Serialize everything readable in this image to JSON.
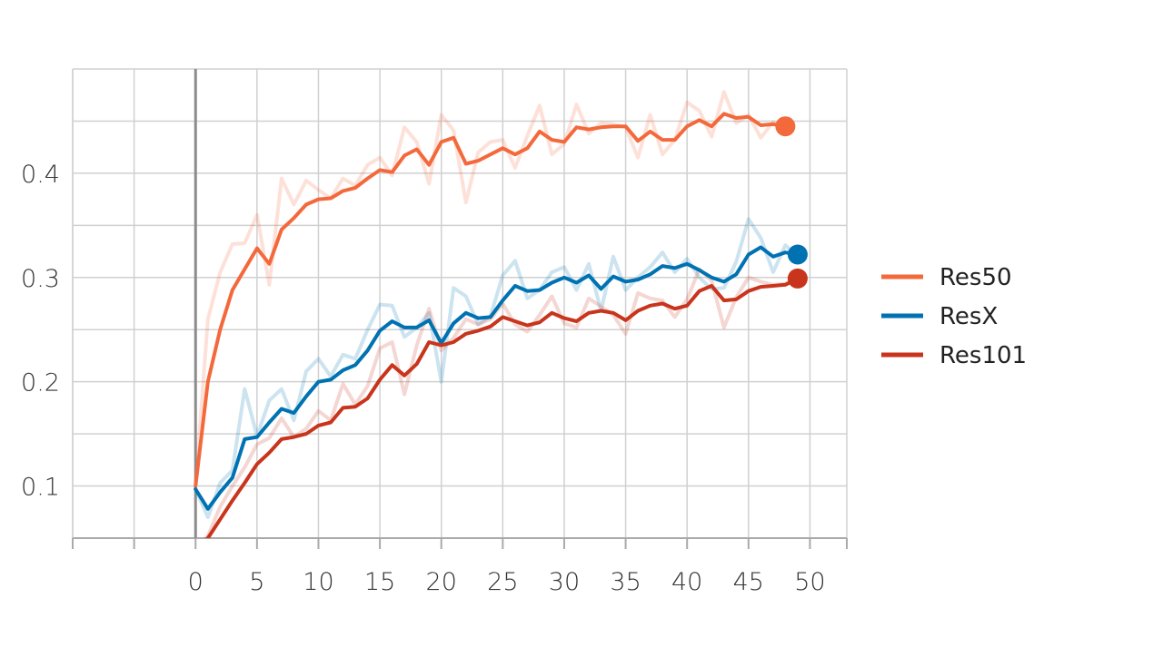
{
  "chart_data": {
    "type": "line",
    "title": "",
    "xlabel": "",
    "ylabel": "",
    "xlim": [
      -10,
      53
    ],
    "ylim": [
      0.05,
      0.5
    ],
    "x_ticks": [
      0,
      5,
      10,
      15,
      20,
      25,
      30,
      35,
      40,
      45,
      50
    ],
    "x_tick_labels": [
      "0",
      "5",
      "10",
      "15",
      "20",
      "25",
      "30",
      "35",
      "40",
      "45",
      "50"
    ],
    "y_ticks": [
      0.1,
      0.2,
      0.3,
      0.4
    ],
    "y_tick_labels": [
      "0.1",
      "0.2",
      "0.3",
      "0.4"
    ],
    "grid": true,
    "legend_position": "right",
    "series": [
      {
        "name": "Res50",
        "color": "#f4693c",
        "smoothed": [
          0.1,
          0.2,
          0.25,
          0.288,
          0.308,
          0.328,
          0.313,
          0.346,
          0.357,
          0.37,
          0.375,
          0.376,
          0.383,
          0.386,
          0.395,
          0.403,
          0.401,
          0.417,
          0.423,
          0.408,
          0.43,
          0.434,
          0.409,
          0.412,
          0.418,
          0.424,
          0.418,
          0.424,
          0.44,
          0.432,
          0.43,
          0.444,
          0.442,
          0.444,
          0.445,
          0.445,
          0.431,
          0.44,
          0.432,
          0.432,
          0.445,
          0.451,
          0.445,
          0.457,
          0.453,
          0.454,
          0.446,
          0.447,
          0.445
        ],
        "raw": [
          0.1,
          0.26,
          0.305,
          0.332,
          0.333,
          0.36,
          0.293,
          0.395,
          0.37,
          0.393,
          0.384,
          0.376,
          0.395,
          0.388,
          0.408,
          0.415,
          0.398,
          0.444,
          0.43,
          0.39,
          0.456,
          0.441,
          0.372,
          0.42,
          0.43,
          0.432,
          0.405,
          0.436,
          0.465,
          0.418,
          0.428,
          0.466,
          0.438,
          0.448,
          0.447,
          0.444,
          0.415,
          0.456,
          0.418,
          0.432,
          0.468,
          0.46,
          0.435,
          0.478,
          0.448,
          0.456,
          0.434,
          0.449,
          0.444
        ]
      },
      {
        "name": "ResX",
        "color": "#0072b2",
        "smoothed": [
          0.097,
          0.078,
          0.094,
          0.108,
          0.145,
          0.147,
          0.161,
          0.174,
          0.17,
          0.186,
          0.2,
          0.202,
          0.211,
          0.216,
          0.23,
          0.249,
          0.258,
          0.252,
          0.252,
          0.259,
          0.237,
          0.256,
          0.266,
          0.261,
          0.262,
          0.278,
          0.292,
          0.287,
          0.288,
          0.295,
          0.3,
          0.295,
          0.302,
          0.289,
          0.301,
          0.296,
          0.298,
          0.303,
          0.311,
          0.309,
          0.313,
          0.307,
          0.3,
          0.296,
          0.303,
          0.322,
          0.329,
          0.32,
          0.324,
          0.322
        ],
        "raw": [
          0.097,
          0.07,
          0.103,
          0.115,
          0.193,
          0.148,
          0.182,
          0.193,
          0.163,
          0.21,
          0.222,
          0.205,
          0.226,
          0.222,
          0.25,
          0.274,
          0.273,
          0.243,
          0.252,
          0.266,
          0.2,
          0.29,
          0.282,
          0.255,
          0.263,
          0.302,
          0.316,
          0.28,
          0.288,
          0.305,
          0.31,
          0.288,
          0.313,
          0.268,
          0.32,
          0.288,
          0.3,
          0.31,
          0.324,
          0.305,
          0.318,
          0.3,
          0.289,
          0.29,
          0.315,
          0.356,
          0.338,
          0.305,
          0.331,
          0.32
        ]
      },
      {
        "name": "Res101",
        "color": "#c8341c",
        "smoothed": [
          0.04,
          0.05,
          0.068,
          0.086,
          0.103,
          0.121,
          0.132,
          0.145,
          0.147,
          0.15,
          0.158,
          0.161,
          0.175,
          0.176,
          0.184,
          0.202,
          0.216,
          0.206,
          0.217,
          0.238,
          0.235,
          0.238,
          0.246,
          0.249,
          0.253,
          0.262,
          0.258,
          0.254,
          0.257,
          0.266,
          0.261,
          0.258,
          0.266,
          0.268,
          0.266,
          0.259,
          0.268,
          0.273,
          0.275,
          0.27,
          0.273,
          0.287,
          0.292,
          0.278,
          0.279,
          0.287,
          0.291,
          0.292,
          0.293,
          0.299
        ],
        "raw": [
          0.04,
          0.052,
          0.08,
          0.1,
          0.118,
          0.14,
          0.146,
          0.165,
          0.147,
          0.155,
          0.172,
          0.163,
          0.198,
          0.178,
          0.196,
          0.232,
          0.238,
          0.188,
          0.235,
          0.27,
          0.23,
          0.242,
          0.26,
          0.255,
          0.26,
          0.275,
          0.255,
          0.248,
          0.264,
          0.282,
          0.256,
          0.252,
          0.28,
          0.272,
          0.264,
          0.246,
          0.285,
          0.28,
          0.278,
          0.262,
          0.279,
          0.308,
          0.297,
          0.252,
          0.281,
          0.3,
          0.296,
          0.293,
          0.294,
          0.3
        ]
      }
    ]
  }
}
